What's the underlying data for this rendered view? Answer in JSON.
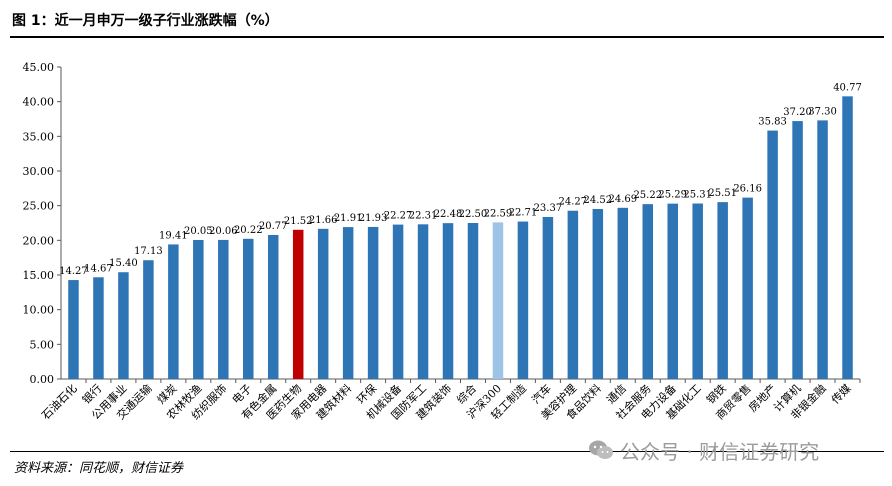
{
  "title": "图 1：近一月申万一级子行业涨跌幅（%）",
  "source": "资料来源：同花顺，财信证券",
  "watermark": "公众号 · 财信证券研究",
  "colors": {
    "default": "#2e75b6",
    "highlight_red": "#c00000",
    "highlight_light": "#9dc3e6"
  },
  "chart_data": {
    "type": "bar",
    "ylim": [
      0,
      45
    ],
    "yticks": [
      "0.00",
      "5.00",
      "10.00",
      "15.00",
      "20.00",
      "25.00",
      "30.00",
      "35.00",
      "40.00",
      "45.00"
    ],
    "categories": [
      "石油石化",
      "银行",
      "公用事业",
      "交通运输",
      "煤炭",
      "农林牧渔",
      "纺织服饰",
      "电子",
      "有色金属",
      "医药生物",
      "家用电器",
      "建筑材料",
      "环保",
      "机械设备",
      "国防军工",
      "建筑装饰",
      "综合",
      "沪深300",
      "轻工制造",
      "汽车",
      "美容护理",
      "食品饮料",
      "通信",
      "社会服务",
      "电力设备",
      "基础化工",
      "钢铁",
      "商贸零售",
      "房地产",
      "计算机",
      "非银金融",
      "传媒"
    ],
    "values": [
      14.27,
      14.67,
      15.4,
      17.13,
      19.41,
      20.05,
      20.06,
      20.22,
      20.77,
      21.52,
      21.66,
      21.91,
      21.93,
      22.27,
      22.31,
      22.48,
      22.5,
      22.59,
      22.71,
      23.37,
      24.27,
      24.52,
      24.69,
      25.22,
      25.29,
      25.31,
      25.51,
      26.16,
      35.83,
      37.2,
      37.3,
      40.77
    ],
    "labels": [
      "14.27",
      "14.67",
      "15.40",
      "17.13",
      "19.41",
      "20.05",
      "20.06",
      "20.22",
      "20.77",
      "21.52",
      "21.66",
      "21.91",
      "21.93",
      "22.27",
      "22.31",
      "22.48",
      "22.50",
      "22.59",
      "22.71",
      "23.37",
      "24.27",
      "24.52",
      "24.69",
      "25.22",
      "25.29",
      "25.31",
      "25.51",
      "26.16",
      "35.83",
      "37.20",
      "37.30",
      "40.77"
    ],
    "highlight_red": [
      "医药生物"
    ],
    "highlight_light": [
      "沪深300"
    ],
    "grid": false,
    "legend": "none"
  }
}
